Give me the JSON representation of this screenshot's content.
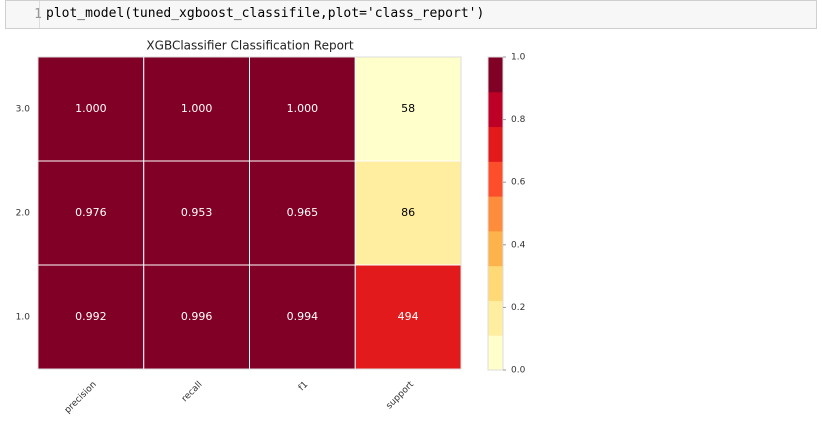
{
  "code_cell": {
    "line_number": "1",
    "code": "plot_model(tuned_xgboost_classifile,plot='class_report')"
  },
  "chart_data": {
    "type": "heatmap",
    "title": "XGBClassifier Classification Report",
    "rows": [
      "3.0",
      "2.0",
      "1.0"
    ],
    "columns": [
      "precision",
      "recall",
      "f1",
      "support"
    ],
    "values": [
      [
        1,
        1,
        1,
        58
      ],
      [
        0.976,
        0.953,
        0.965,
        86
      ],
      [
        0.992,
        0.996,
        0.994,
        494
      ]
    ],
    "value_labels": [
      [
        "1.000",
        "1.000",
        "1.000",
        "58"
      ],
      [
        "0.976",
        "0.953",
        "0.965",
        "86"
      ],
      [
        "0.992",
        "0.996",
        "0.994",
        "494"
      ]
    ],
    "colors": [
      "#ffffcc",
      "#ffeda0",
      "#fed976",
      "#feb24c",
      "#fd8d3c",
      "#fc4e2a",
      "#e31a1c",
      "#bd0026",
      "#800026"
    ],
    "clim": [
      0,
      1
    ],
    "cticks": [
      {
        "value": 0,
        "label": "0.0"
      },
      {
        "value": 0.2,
        "label": "0.2"
      },
      {
        "value": 0.4,
        "label": "0.4"
      },
      {
        "value": 0.6,
        "label": "0.6"
      },
      {
        "value": 0.8,
        "label": "0.8"
      },
      {
        "value": 1,
        "label": "1.0"
      }
    ]
  }
}
